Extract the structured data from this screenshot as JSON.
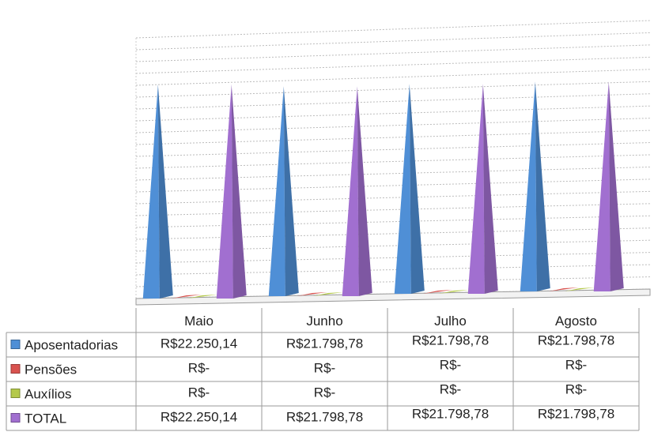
{
  "chart_data": {
    "type": "bar",
    "style": "3d-pyramid",
    "categories": [
      "Maio",
      "Junho",
      "Julho",
      "Agosto"
    ],
    "series": [
      {
        "name": "Aposentadorias",
        "color": "#4f8fd6",
        "values": [
          22250.14,
          21798.78,
          21798.78,
          21798.78
        ],
        "labels": [
          "R$22.250,14",
          "R$21.798,78",
          "R$21.798,78",
          "R$21.798,78"
        ]
      },
      {
        "name": "Pensões",
        "color": "#d9534f",
        "values": [
          0,
          0,
          0,
          0
        ],
        "labels": [
          "R$-",
          "R$-",
          "R$-",
          "R$-"
        ]
      },
      {
        "name": "Auxílios",
        "color": "#b4c94a",
        "values": [
          0,
          0,
          0,
          0
        ],
        "labels": [
          "R$-",
          "R$-",
          "R$-",
          "R$-"
        ]
      },
      {
        "name": "TOTAL",
        "color": "#a16fd0",
        "values": [
          22250.14,
          21798.78,
          21798.78,
          21798.78
        ],
        "labels": [
          "R$22.250,14",
          "R$21.798,78",
          "R$21.798,78",
          "R$21.798,78"
        ]
      }
    ],
    "ylim": [
      0,
      25000
    ],
    "grid": true,
    "legend": "data-table-left"
  }
}
